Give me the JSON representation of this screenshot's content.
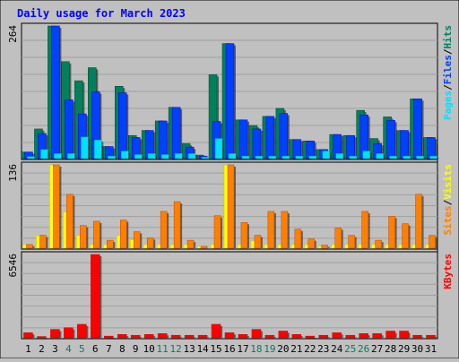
{
  "title": "Daily usage for March 2023",
  "colors": {
    "background": "#C0C0C0",
    "plot_background": "#C0C0C0",
    "title_text": "#0000FF",
    "hits": "#00805C",
    "files": "#0040FF",
    "pages": "#00E0FF",
    "visits": "#FFFF00",
    "sites": "#FF8000",
    "kbytes": "#FF0000",
    "weekend_day_label": "#00805C",
    "day_label": "#000000"
  },
  "chart_data": [
    {
      "type": "bar",
      "panel": "hits_files_pages",
      "ymax_label": "264",
      "ylim": [
        0,
        264
      ],
      "legend": [
        "Pages",
        "/",
        "Files",
        "/",
        "Hits"
      ],
      "categories": [
        "1",
        "2",
        "3",
        "4",
        "5",
        "6",
        "7",
        "8",
        "9",
        "10",
        "11",
        "12",
        "13",
        "14",
        "15",
        "16",
        "17",
        "18",
        "19",
        "20",
        "21",
        "22",
        "23",
        "24",
        "25",
        "26",
        "27",
        "28",
        "29",
        "30",
        "31"
      ],
      "series": [
        {
          "name": "Hits",
          "values": [
            13,
            59,
            264,
            193,
            155,
            181,
            24,
            144,
            46,
            56,
            75,
            102,
            30,
            7,
            167,
            229,
            77,
            66,
            84,
            100,
            38,
            35,
            18,
            48,
            46,
            96,
            40,
            83,
            56,
            119,
            42
          ]
        },
        {
          "name": "Files",
          "values": [
            13,
            50,
            264,
            117,
            89,
            133,
            24,
            131,
            42,
            56,
            75,
            102,
            23,
            5,
            74,
            229,
            77,
            59,
            84,
            90,
            38,
            35,
            18,
            48,
            46,
            87,
            30,
            76,
            56,
            119,
            42
          ]
        },
        {
          "name": "Pages",
          "values": [
            4,
            18,
            10,
            10,
            43,
            37,
            5,
            15,
            8,
            10,
            8,
            10,
            10,
            3,
            40,
            10,
            5,
            5,
            5,
            5,
            5,
            5,
            15,
            10,
            5,
            15,
            10,
            5,
            5,
            5,
            5
          ]
        }
      ]
    },
    {
      "type": "bar",
      "panel": "visits_sites",
      "ymax_label": "136",
      "ylim": [
        0,
        136
      ],
      "legend": [
        "Sites",
        "/",
        "Visits"
      ],
      "categories": [
        "1",
        "2",
        "3",
        "4",
        "5",
        "6",
        "7",
        "8",
        "9",
        "10",
        "11",
        "12",
        "13",
        "14",
        "15",
        "16",
        "17",
        "18",
        "19",
        "20",
        "21",
        "22",
        "23",
        "24",
        "25",
        "26",
        "27",
        "28",
        "29",
        "30",
        "31"
      ],
      "series": [
        {
          "name": "Visits",
          "values": [
            6,
            21,
            136,
            59,
            21,
            6,
            6,
            21,
            14,
            6,
            6,
            6,
            6,
            3,
            6,
            136,
            6,
            12,
            6,
            6,
            6,
            6,
            3,
            6,
            6,
            6,
            6,
            6,
            6,
            6,
            6
          ]
        },
        {
          "name": "Sites",
          "values": [
            6,
            21,
            136,
            88,
            37,
            44,
            13,
            46,
            27,
            17,
            60,
            76,
            13,
            3,
            53,
            136,
            42,
            21,
            60,
            60,
            31,
            15,
            5,
            33,
            21,
            60,
            13,
            52,
            40,
            88,
            21
          ]
        }
      ]
    },
    {
      "type": "bar",
      "panel": "kbytes",
      "ymax_label": "6546",
      "ylim": [
        0,
        6546
      ],
      "legend": [
        "KBytes"
      ],
      "categories": [
        "1",
        "2",
        "3",
        "4",
        "5",
        "6",
        "7",
        "8",
        "9",
        "10",
        "11",
        "12",
        "13",
        "14",
        "15",
        "16",
        "17",
        "18",
        "19",
        "20",
        "21",
        "22",
        "23",
        "24",
        "25",
        "26",
        "27",
        "28",
        "29",
        "30",
        "31"
      ],
      "series": [
        {
          "name": "KBytes",
          "values": [
            397,
            99,
            662,
            794,
            1058,
            6546,
            132,
            265,
            198,
            265,
            331,
            198,
            198,
            198,
            1058,
            397,
            265,
            662,
            198,
            529,
            265,
            132,
            198,
            397,
            198,
            331,
            331,
            529,
            529,
            198,
            198
          ]
        }
      ]
    }
  ],
  "weekend_days": [
    "4",
    "5",
    "11",
    "12",
    "18",
    "19",
    "25",
    "26"
  ]
}
